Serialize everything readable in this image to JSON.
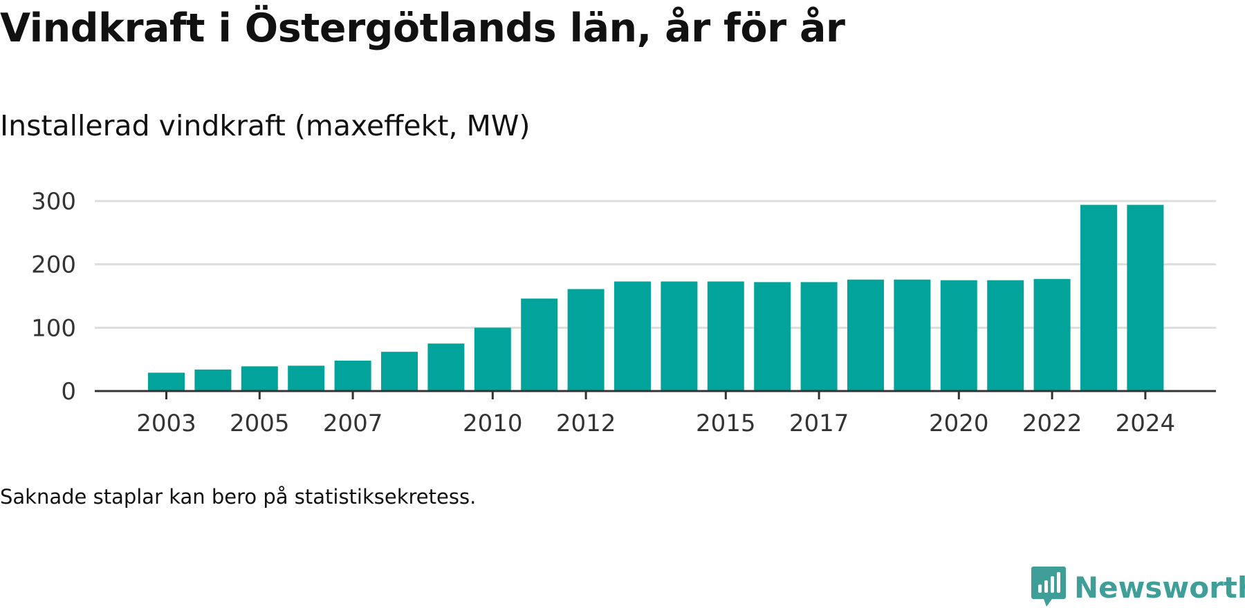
{
  "header": {
    "title": "Vindkraft i Östergötlands län, år för år",
    "subtitle": "Installerad vindkraft (maxeffekt, MW)"
  },
  "footer": {
    "note": "Saknade staplar kan bero på statistiksekretess.",
    "brand": "Newsworthy",
    "brand_icon": "newsworthy-logo-icon"
  },
  "colors": {
    "bar": "#02a39a",
    "grid": "#dddddd",
    "axis": "#333333",
    "brand": "#3f9f98"
  },
  "chart_data": {
    "type": "bar",
    "categories": [
      "2003",
      "2004",
      "2005",
      "2006",
      "2007",
      "2008",
      "2009",
      "2010",
      "2011",
      "2012",
      "2013",
      "2014",
      "2015",
      "2016",
      "2017",
      "2018",
      "2019",
      "2020",
      "2021",
      "2022",
      "2023",
      "2024"
    ],
    "values": [
      29,
      34,
      39,
      40,
      48,
      62,
      75,
      100,
      146,
      161,
      173,
      173,
      173,
      172,
      172,
      176,
      176,
      175,
      175,
      177,
      294,
      294
    ],
    "x_tick_labels": [
      "2003",
      "2005",
      "2007",
      "2010",
      "2012",
      "2015",
      "2017",
      "2020",
      "2022",
      "2024"
    ],
    "y_ticks": [
      0,
      100,
      200,
      300
    ],
    "ylim": [
      0,
      300
    ],
    "grid": true,
    "title": "Vindkraft i Östergötlands län, år för år",
    "subtitle": "Installerad vindkraft (maxeffekt, MW)",
    "xlabel": "",
    "ylabel": ""
  }
}
